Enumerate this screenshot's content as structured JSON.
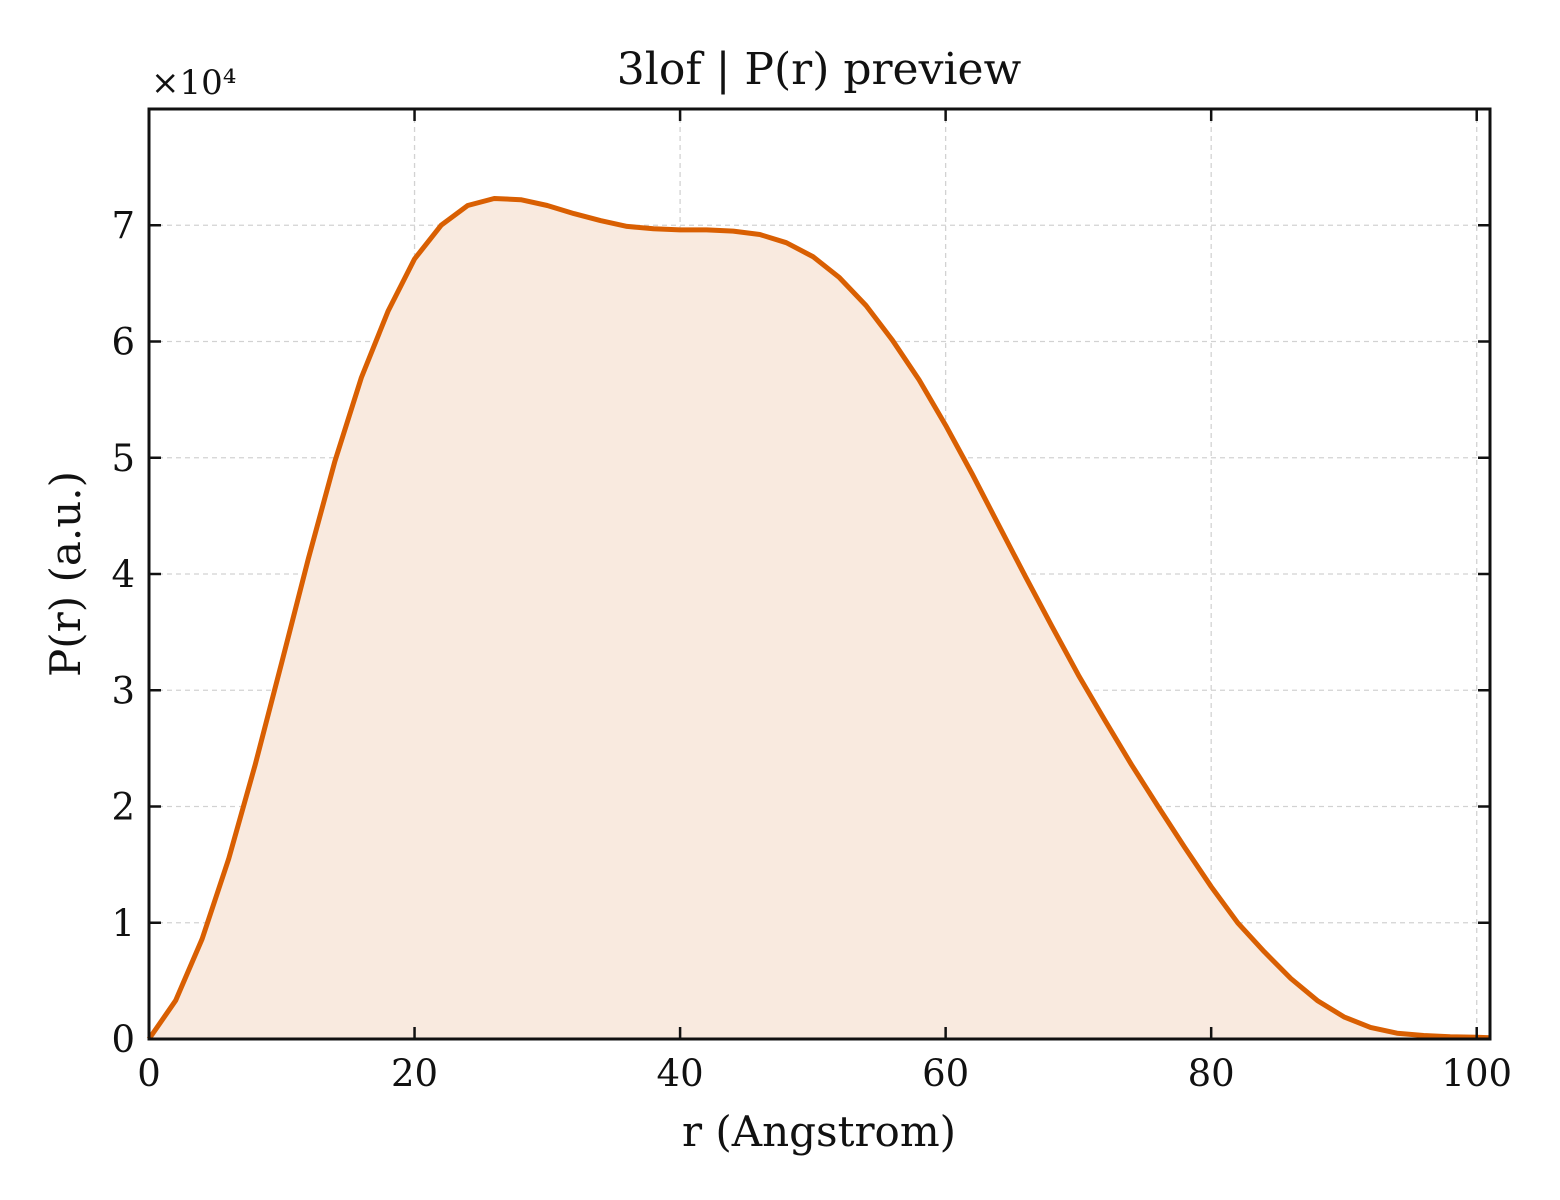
{
  "chart_data": {
    "type": "area",
    "title": "3lof | P(r) preview",
    "xlabel": "r (Angstrom)",
    "ylabel": "P(r) (a.u.)",
    "y_multiplier_label": "×10⁴",
    "xlim": [
      0,
      101
    ],
    "ylim": [
      0,
      80000
    ],
    "xticks": [
      0,
      20,
      40,
      60,
      80,
      100
    ],
    "yticks": [
      0,
      10000,
      20000,
      30000,
      40000,
      50000,
      60000,
      70000
    ],
    "ytick_labels": [
      "0",
      "1",
      "2",
      "3",
      "4",
      "5",
      "6",
      "7"
    ],
    "grid": true,
    "line_color": "#d95f02",
    "fill_color": "#f9eadf",
    "series": [
      {
        "x": [
          0,
          2,
          4,
          6,
          8,
          10,
          12,
          14,
          16,
          18,
          20,
          22,
          24,
          26,
          28,
          30,
          32,
          34,
          36,
          38,
          40,
          42,
          44,
          46,
          48,
          50,
          52,
          54,
          56,
          58,
          60,
          62,
          64,
          66,
          68,
          70,
          72,
          74,
          76,
          78,
          80,
          82,
          84,
          86,
          88,
          90,
          92,
          94,
          96,
          98,
          100,
          101
        ],
        "y": [
          0,
          3300,
          8600,
          15500,
          23600,
          32400,
          41300,
          49700,
          56900,
          62600,
          67100,
          70000,
          71700,
          72300,
          72200,
          71700,
          71000,
          70400,
          69900,
          69700,
          69600,
          69600,
          69500,
          69200,
          68500,
          67300,
          65500,
          63100,
          60100,
          56700,
          52800,
          48600,
          44200,
          39800,
          35500,
          31300,
          27400,
          23600,
          20000,
          16500,
          13100,
          10000,
          7500,
          5200,
          3300,
          1900,
          1000,
          500,
          300,
          200,
          150,
          100
        ]
      }
    ]
  }
}
